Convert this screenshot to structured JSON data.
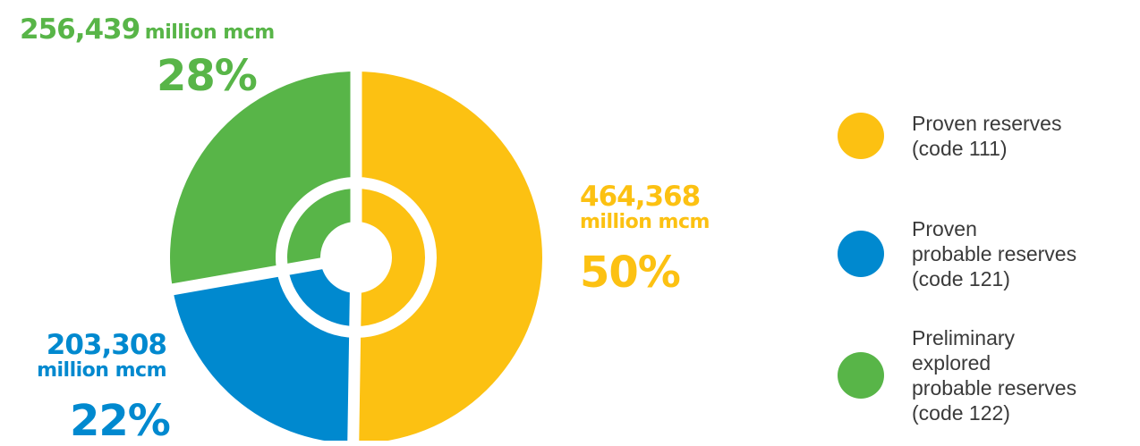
{
  "chart_data": {
    "type": "pie",
    "series": [
      {
        "name": "Proven reserves (code 111)",
        "value": 464368,
        "percent": 50,
        "color": "#fcc112"
      },
      {
        "name": "Proven probable reserves (code 121)",
        "value": 203308,
        "percent": 22,
        "color": "#0089cf"
      },
      {
        "name": "Preliminary explored probable reserves (code 122)",
        "value": 256439,
        "percent": 28,
        "color": "#58b548"
      }
    ]
  },
  "labels": {
    "proven": {
      "amount": "464,368",
      "unit": "million mcm",
      "percent": "50%"
    },
    "probable": {
      "amount": "203,308",
      "unit": "million mcm",
      "percent": "22%"
    },
    "preliminary": {
      "amount": "256,439",
      "unit": "million mcm",
      "percent": "28%"
    }
  },
  "legend": [
    {
      "lines": [
        "Proven reserves",
        "(code 111)"
      ],
      "color": "#fcc112"
    },
    {
      "lines": [
        "Proven",
        "probable reserves",
        "(code 121)"
      ],
      "color": "#0089cf"
    },
    {
      "lines": [
        "Preliminary",
        "explored",
        "probable reserves",
        "(code 122)"
      ],
      "color": "#58b548"
    }
  ]
}
